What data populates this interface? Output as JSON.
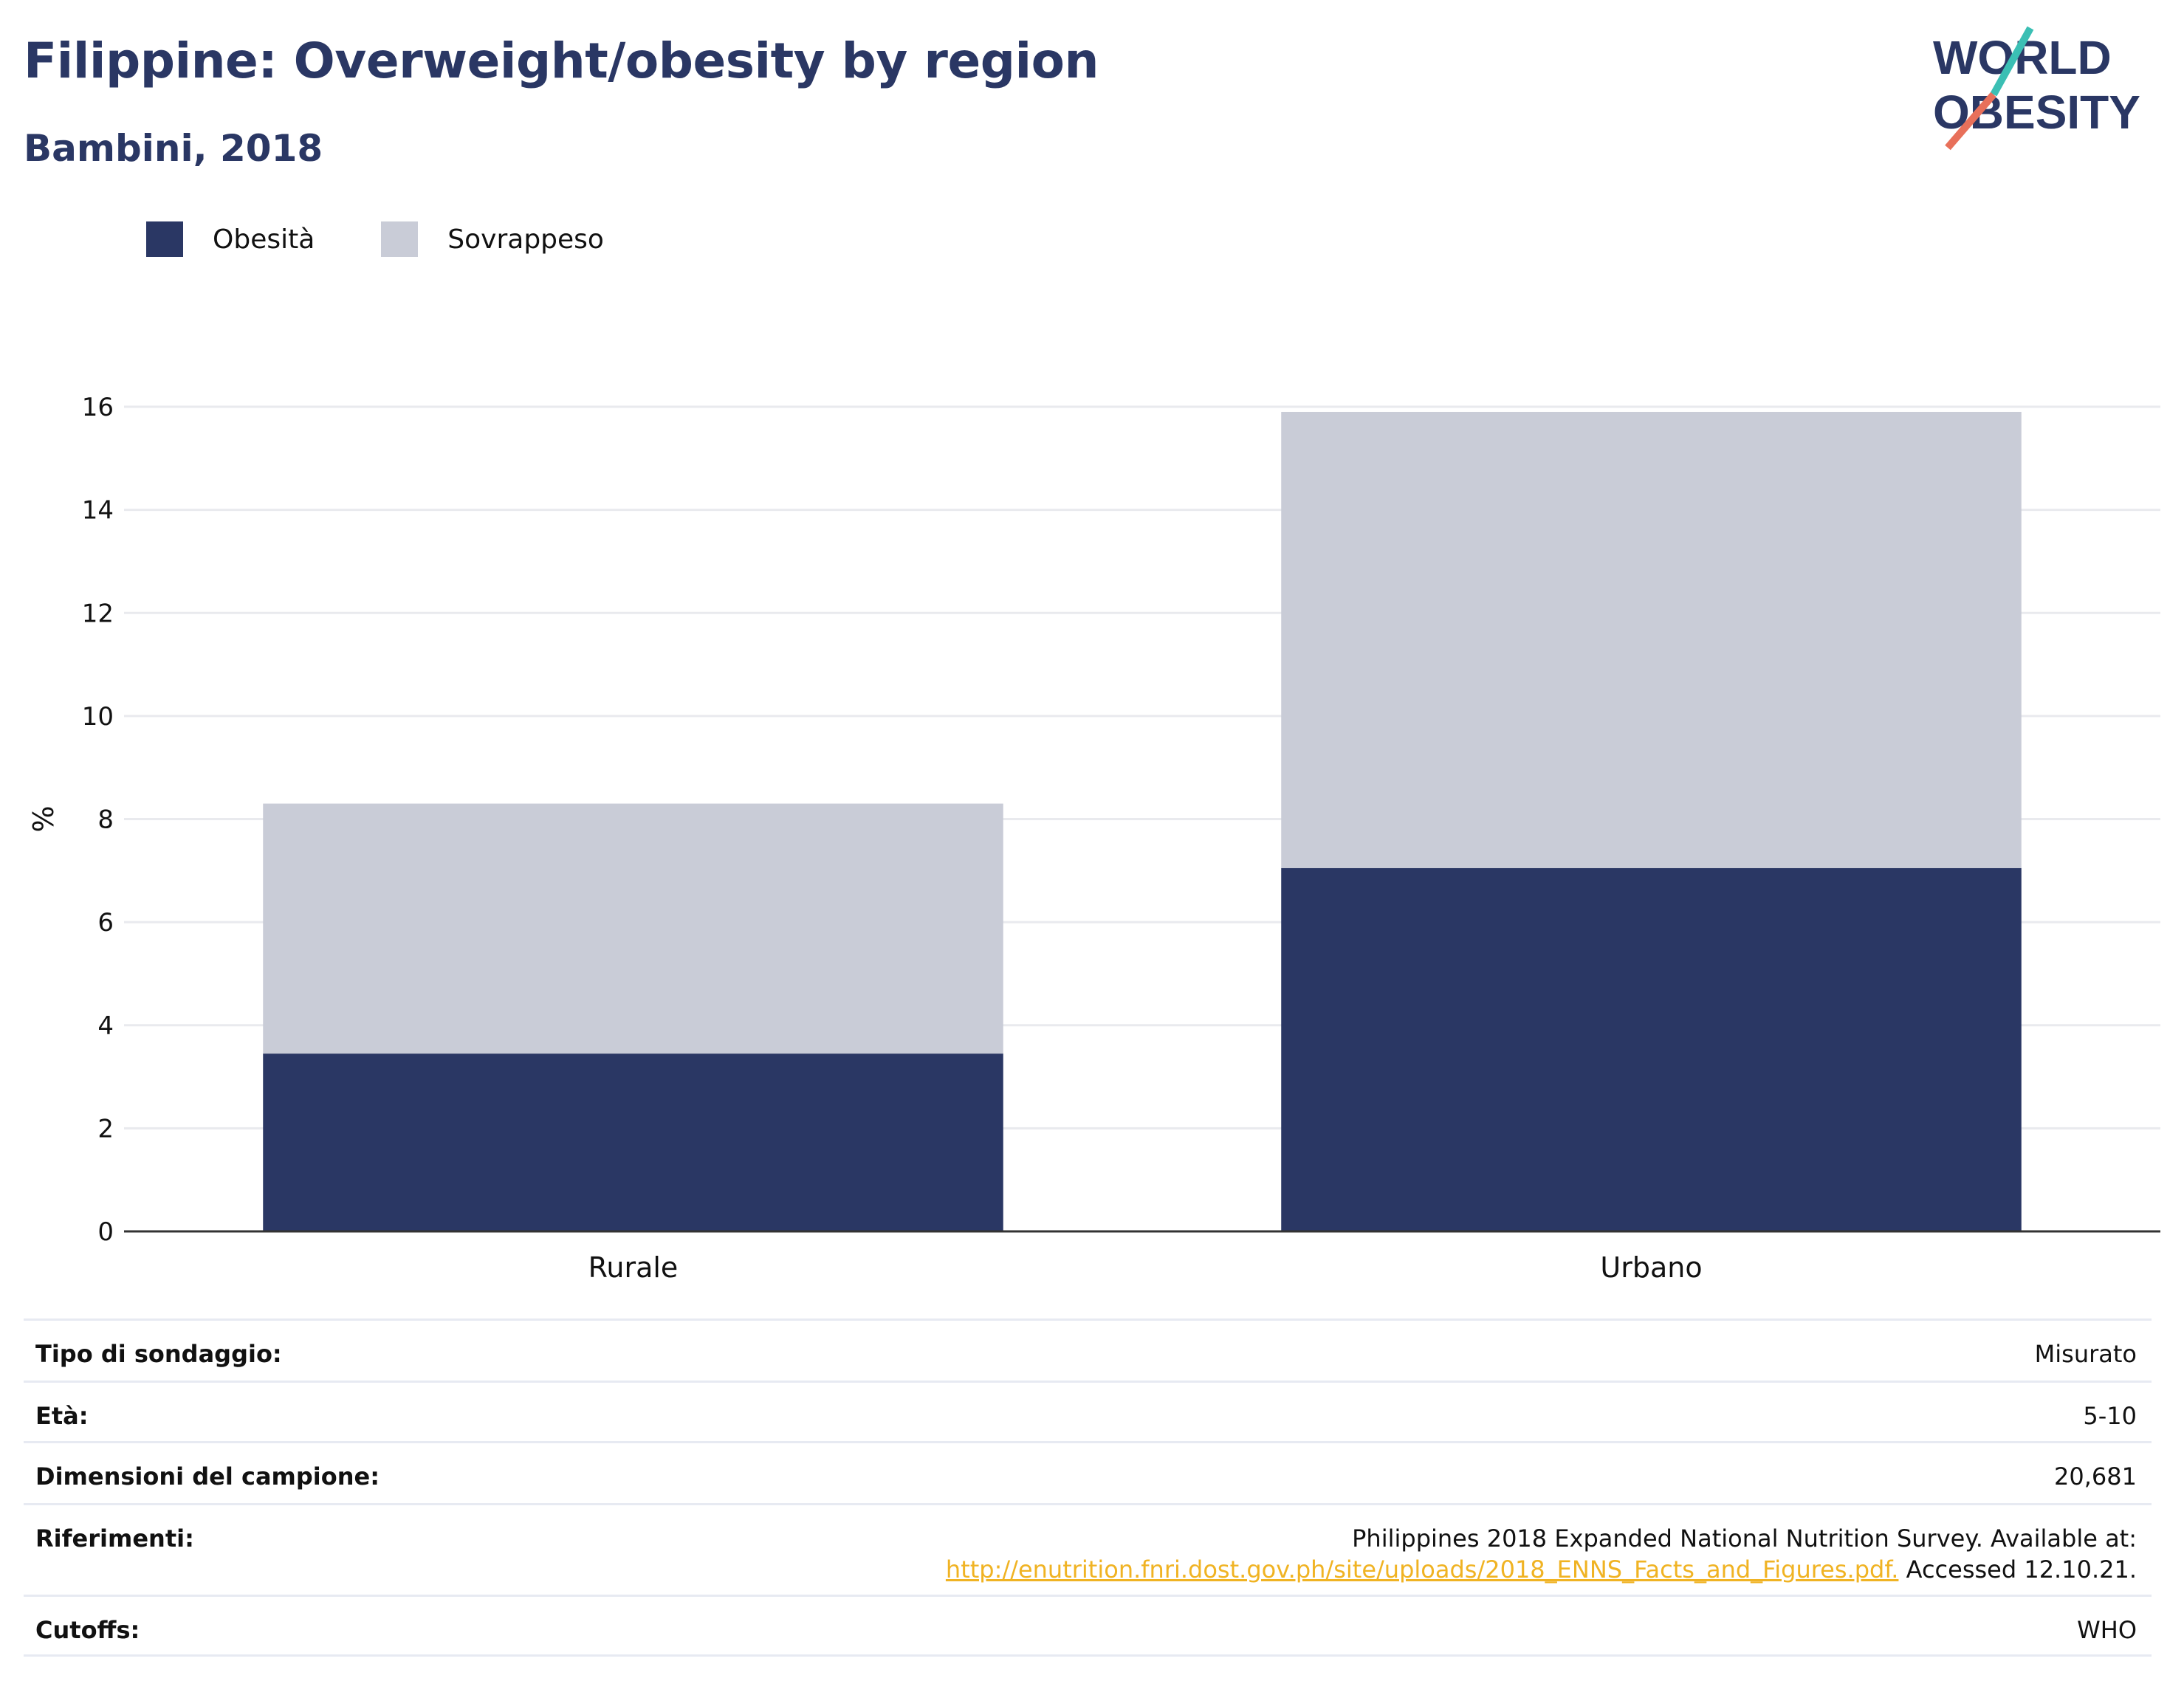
{
  "header": {
    "title": "Filippine: Overweight/obesity by region",
    "subtitle": "Bambini, 2018"
  },
  "logo": {
    "line1": "WORLD",
    "line2": "OBESITY",
    "colors": {
      "text": "#2a3764",
      "slash_top": "#3bbfb4",
      "slash_bottom": "#e8705a"
    }
  },
  "legend": [
    {
      "label": "Obesità",
      "color": "#2a3764"
    },
    {
      "label": "Sovrappeso",
      "color": "#c9ccd7"
    }
  ],
  "chart_data": {
    "type": "bar",
    "stacked": true,
    "categories": [
      "Rurale",
      "Urbano"
    ],
    "series": [
      {
        "name": "Obesità",
        "values": [
          3.45,
          7.05
        ],
        "color": "#2a3764"
      },
      {
        "name": "Sovrappeso",
        "values": [
          4.85,
          8.85
        ],
        "color": "#c9ccd7"
      }
    ],
    "title": "Filippine: Overweight/obesity by region",
    "subtitle": "Bambini, 2018",
    "xlabel": "",
    "ylabel": "%",
    "ylim": [
      0,
      16
    ],
    "yticks": [
      0,
      2,
      4,
      6,
      8,
      10,
      12,
      14,
      16
    ],
    "grid": true,
    "legend_position": "top-left"
  },
  "info": {
    "survey_type": {
      "key": "Tipo di sondaggio:",
      "value": "Misurato"
    },
    "age": {
      "key": "Età:",
      "value": "5-10"
    },
    "sample_size": {
      "key": "Dimensioni del campione:",
      "value": "20,681"
    },
    "references": {
      "key": "Riferimenti:",
      "line1": "Philippines 2018 Expanded National Nutrition Survey. Available at:",
      "link": "http://enutrition.fnri.dost.gov.ph/site/uploads/2018_ENNS_Facts_and_Figures.pdf.",
      "accessed": " Accessed 12.10.21."
    },
    "cutoffs": {
      "key": "Cutoffs:",
      "value": "WHO"
    }
  }
}
